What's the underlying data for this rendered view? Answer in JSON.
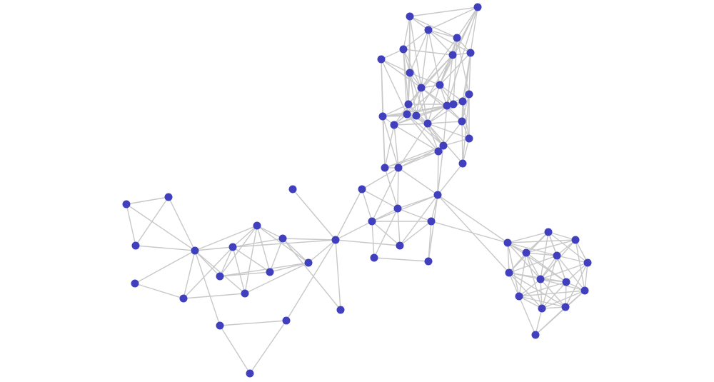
{
  "graph": {
    "type": "network",
    "node_count": 69,
    "node_color": "#4040bf",
    "edge_color": "#c8c8c8",
    "background": "#ffffff",
    "edges": [
      [
        0,
        1
      ],
      [
        0,
        2
      ],
      [
        0,
        3
      ],
      [
        0,
        4
      ],
      [
        0,
        8
      ],
      [
        0,
        10
      ],
      [
        0,
        12
      ],
      [
        1,
        2
      ],
      [
        1,
        3
      ],
      [
        1,
        5
      ],
      [
        1,
        6
      ],
      [
        1,
        9
      ],
      [
        1,
        13
      ],
      [
        2,
        3
      ],
      [
        2,
        4
      ],
      [
        2,
        5
      ],
      [
        2,
        8
      ],
      [
        2,
        9
      ],
      [
        2,
        10
      ],
      [
        2,
        6
      ],
      [
        3,
        5
      ],
      [
        3,
        6
      ],
      [
        3,
        9
      ],
      [
        3,
        10
      ],
      [
        3,
        11
      ],
      [
        3,
        14
      ],
      [
        4,
        7
      ],
      [
        4,
        8
      ],
      [
        4,
        5
      ],
      [
        4,
        10
      ],
      [
        4,
        12
      ],
      [
        4,
        17
      ],
      [
        5,
        6
      ],
      [
        5,
        9
      ],
      [
        5,
        10
      ],
      [
        5,
        12
      ],
      [
        5,
        13
      ],
      [
        5,
        18
      ],
      [
        6,
        11
      ],
      [
        6,
        15
      ],
      [
        6,
        9
      ],
      [
        6,
        21
      ],
      [
        7,
        8
      ],
      [
        7,
        16
      ],
      [
        7,
        10
      ],
      [
        7,
        17
      ],
      [
        7,
        25
      ],
      [
        8,
        10
      ],
      [
        8,
        12
      ],
      [
        8,
        9
      ],
      [
        8,
        17
      ],
      [
        8,
        18
      ],
      [
        8,
        20
      ],
      [
        9,
        10
      ],
      [
        9,
        13
      ],
      [
        9,
        14
      ],
      [
        9,
        15
      ],
      [
        9,
        20
      ],
      [
        9,
        19
      ],
      [
        10,
        12
      ],
      [
        10,
        13
      ],
      [
        10,
        17
      ],
      [
        10,
        18
      ],
      [
        10,
        20
      ],
      [
        10,
        21
      ],
      [
        11,
        15
      ],
      [
        11,
        13
      ],
      [
        11,
        21
      ],
      [
        11,
        22
      ],
      [
        12,
        16
      ],
      [
        12,
        17
      ],
      [
        12,
        18
      ],
      [
        12,
        19
      ],
      [
        12,
        20
      ],
      [
        12,
        14
      ],
      [
        13,
        14
      ],
      [
        13,
        15
      ],
      [
        13,
        20
      ],
      [
        13,
        17
      ],
      [
        13,
        21
      ],
      [
        13,
        23
      ],
      [
        14,
        15
      ],
      [
        14,
        18
      ],
      [
        14,
        19
      ],
      [
        15,
        21
      ],
      [
        15,
        22
      ],
      [
        15,
        20
      ],
      [
        16,
        17
      ],
      [
        16,
        18
      ],
      [
        16,
        19
      ],
      [
        16,
        25
      ],
      [
        16,
        26
      ],
      [
        16,
        13
      ],
      [
        17,
        18
      ],
      [
        17,
        19
      ],
      [
        17,
        20
      ],
      [
        17,
        23
      ],
      [
        17,
        24
      ],
      [
        18,
        19
      ],
      [
        18,
        20
      ],
      [
        18,
        23
      ],
      [
        18,
        13
      ],
      [
        19,
        25
      ],
      [
        19,
        26
      ],
      [
        19,
        24
      ],
      [
        19,
        20
      ],
      [
        20,
        21
      ],
      [
        20,
        23
      ],
      [
        20,
        24
      ],
      [
        20,
        22
      ],
      [
        21,
        22
      ],
      [
        21,
        23
      ],
      [
        21,
        27
      ],
      [
        22,
        23
      ],
      [
        22,
        27
      ],
      [
        23,
        24
      ],
      [
        23,
        25
      ],
      [
        23,
        26
      ],
      [
        24,
        26
      ],
      [
        24,
        25
      ],
      [
        25,
        26
      ],
      [
        26,
        20
      ],
      [
        27,
        20
      ],
      [
        11,
        27
      ],
      [
        28,
        30
      ],
      [
        28,
        31
      ],
      [
        28,
        26
      ],
      [
        29,
        30
      ],
      [
        29,
        31
      ],
      [
        29,
        32
      ],
      [
        29,
        33
      ],
      [
        29,
        35
      ],
      [
        30,
        31
      ],
      [
        30,
        32
      ],
      [
        30,
        33
      ],
      [
        30,
        34
      ],
      [
        30,
        26
      ],
      [
        30,
        25
      ],
      [
        31,
        32
      ],
      [
        31,
        33
      ],
      [
        31,
        34
      ],
      [
        32,
        33
      ],
      [
        32,
        35
      ],
      [
        34,
        35
      ],
      [
        32,
        55
      ],
      [
        29,
        55
      ],
      [
        29,
        61
      ],
      [
        29,
        23
      ],
      [
        29,
        24
      ],
      [
        29,
        27
      ],
      [
        29,
        26
      ],
      [
        31,
        26
      ],
      [
        39,
        40
      ],
      [
        39,
        41
      ],
      [
        40,
        41
      ],
      [
        39,
        42
      ],
      [
        40,
        42
      ],
      [
        41,
        42
      ],
      [
        42,
        43
      ],
      [
        43,
        44
      ],
      [
        42,
        44
      ],
      [
        42,
        46
      ],
      [
        42,
        48
      ],
      [
        42,
        50
      ],
      [
        42,
        45
      ],
      [
        42,
        52
      ],
      [
        44,
        50
      ],
      [
        44,
        46
      ],
      [
        45,
        46
      ],
      [
        45,
        47
      ],
      [
        45,
        48
      ],
      [
        45,
        49
      ],
      [
        45,
        50
      ],
      [
        46,
        47
      ],
      [
        46,
        48
      ],
      [
        46,
        50
      ],
      [
        46,
        49
      ],
      [
        47,
        49
      ],
      [
        47,
        36
      ],
      [
        47,
        51
      ],
      [
        48,
        49
      ],
      [
        48,
        51
      ],
      [
        49,
        51
      ],
      [
        50,
        51
      ],
      [
        45,
        51
      ],
      [
        52,
        53
      ],
      [
        52,
        54
      ],
      [
        53,
        54
      ],
      [
        53,
        36
      ],
      [
        37,
        36
      ],
      [
        51,
        36
      ],
      [
        47,
        38
      ],
      [
        36,
        38
      ],
      [
        36,
        28
      ],
      [
        36,
        31
      ],
      [
        36,
        33
      ],
      [
        46,
        36
      ],
      [
        55,
        56
      ],
      [
        55,
        57
      ],
      [
        55,
        58
      ],
      [
        55,
        59
      ],
      [
        55,
        61
      ],
      [
        55,
        62
      ],
      [
        55,
        65
      ],
      [
        55,
        63
      ],
      [
        56,
        57
      ],
      [
        56,
        58
      ],
      [
        56,
        59
      ],
      [
        56,
        60
      ],
      [
        56,
        61
      ],
      [
        56,
        62
      ],
      [
        56,
        63
      ],
      [
        57,
        58
      ],
      [
        57,
        59
      ],
      [
        57,
        60
      ],
      [
        57,
        62
      ],
      [
        57,
        64
      ],
      [
        58,
        59
      ],
      [
        58,
        61
      ],
      [
        58,
        62
      ],
      [
        58,
        63
      ],
      [
        58,
        65
      ],
      [
        58,
        66
      ],
      [
        59,
        60
      ],
      [
        59,
        61
      ],
      [
        59,
        62
      ],
      [
        59,
        63
      ],
      [
        59,
        64
      ],
      [
        59,
        66
      ],
      [
        60,
        62
      ],
      [
        60,
        63
      ],
      [
        60,
        64
      ],
      [
        60,
        67
      ],
      [
        61,
        62
      ],
      [
        61,
        63
      ],
      [
        61,
        65
      ],
      [
        61,
        66
      ],
      [
        61,
        67
      ],
      [
        62,
        63
      ],
      [
        62,
        64
      ],
      [
        62,
        65
      ],
      [
        62,
        66
      ],
      [
        62,
        67
      ],
      [
        63,
        64
      ],
      [
        63,
        65
      ],
      [
        63,
        66
      ],
      [
        63,
        67
      ],
      [
        64,
        65
      ],
      [
        64,
        66
      ],
      [
        64,
        67
      ],
      [
        65,
        66
      ],
      [
        65,
        67
      ],
      [
        66,
        67
      ],
      [
        65,
        68
      ],
      [
        66,
        68
      ],
      [
        67,
        68
      ],
      [
        64,
        68
      ]
    ]
  }
}
